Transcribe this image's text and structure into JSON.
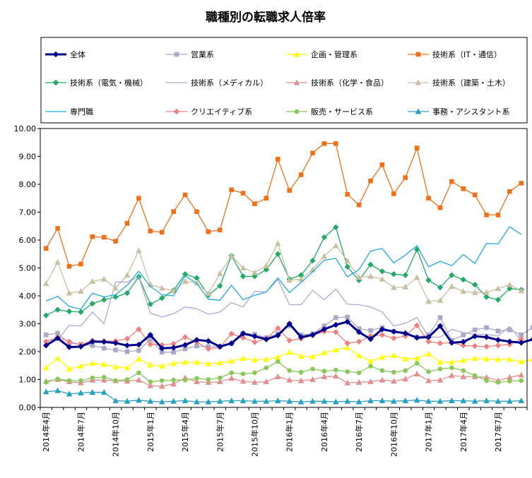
{
  "chart_data": {
    "type": "line",
    "title": "職種別の転職求人倍率",
    "xlabel": "",
    "ylabel": "",
    "ylim": [
      0,
      10
    ],
    "yticks": [
      "0.00",
      "1.00",
      "2.00",
      "3.00",
      "4.00",
      "5.00",
      "6.00",
      "7.00",
      "8.00",
      "9.00",
      "10.00"
    ],
    "xticks": [
      {
        "index": 0,
        "label": "2014年4月"
      },
      {
        "index": 3,
        "label": "2014年7月"
      },
      {
        "index": 6,
        "label": "2014年10月"
      },
      {
        "index": 9,
        "label": "2015年1月"
      },
      {
        "index": 12,
        "label": "2015年4月"
      },
      {
        "index": 15,
        "label": "2015年7月"
      },
      {
        "index": 18,
        "label": "2015年10月"
      },
      {
        "index": 21,
        "label": "2016年1月"
      },
      {
        "index": 24,
        "label": "2016年4月"
      },
      {
        "index": 27,
        "label": "2016年7月"
      },
      {
        "index": 30,
        "label": "2016年10月"
      },
      {
        "index": 33,
        "label": "2017年1月"
      },
      {
        "index": 36,
        "label": "2017年4月"
      },
      {
        "index": 39,
        "label": "2017年7月"
      }
    ],
    "grid": false,
    "legend_position": "top",
    "series": [
      {
        "name": "全体",
        "color": "#00008b",
        "marker": "diamond",
        "bold": true,
        "values": [
          2.22,
          2.48,
          2.16,
          2.18,
          2.36,
          2.35,
          2.31,
          2.22,
          2.25,
          2.6,
          2.12,
          2.14,
          2.24,
          2.42,
          2.38,
          2.18,
          2.3,
          2.65,
          2.55,
          2.44,
          2.58,
          3.0,
          2.52,
          2.6,
          2.8,
          2.96,
          3.07,
          2.7,
          2.45,
          2.8,
          2.72,
          2.66,
          2.5,
          2.52,
          2.92,
          2.32,
          2.35,
          2.55,
          2.52,
          2.42,
          2.36,
          2.32,
          2.44,
          2.42
        ]
      },
      {
        "name": "営業系",
        "color": "#a9a9c8",
        "marker": "square",
        "values": [
          2.6,
          2.66,
          2.3,
          2.26,
          2.22,
          2.12,
          2.06,
          2.0,
          2.04,
          2.44,
          1.98,
          1.98,
          2.1,
          2.2,
          2.18,
          2.18,
          2.28,
          2.66,
          2.62,
          2.5,
          2.64,
          2.92,
          2.6,
          2.64,
          2.92,
          3.22,
          3.24,
          2.82,
          2.76,
          2.86,
          2.72,
          2.6,
          2.52,
          2.6,
          3.22,
          2.4,
          2.6,
          2.78,
          2.86,
          2.74,
          2.78,
          2.6,
          2.86,
          2.64
        ]
      },
      {
        "name": "企画・管理系",
        "color": "#ffff00",
        "marker": "triangle",
        "values": [
          1.42,
          1.76,
          1.38,
          1.48,
          1.58,
          1.54,
          1.45,
          1.42,
          1.74,
          1.52,
          1.48,
          1.58,
          1.62,
          1.62,
          1.56,
          1.6,
          1.66,
          1.76,
          1.7,
          1.72,
          1.8,
          1.98,
          1.84,
          1.82,
          1.96,
          2.06,
          2.14,
          1.86,
          1.66,
          1.8,
          1.86,
          1.74,
          1.76,
          1.92,
          1.62,
          1.62,
          1.68,
          1.76,
          1.74,
          1.72,
          1.72,
          1.64,
          1.72,
          1.74
        ]
      },
      {
        "name": "技術系（IT・通信）",
        "color": "#f07018",
        "marker": "square",
        "values": [
          5.7,
          6.42,
          5.06,
          5.14,
          6.12,
          6.1,
          5.96,
          6.6,
          7.5,
          6.32,
          6.28,
          7.02,
          7.62,
          7.02,
          6.3,
          6.36,
          7.8,
          7.68,
          7.3,
          7.5,
          8.9,
          7.78,
          8.34,
          9.12,
          9.46,
          9.46,
          7.64,
          7.26,
          8.12,
          8.7,
          7.66,
          8.24,
          9.3,
          7.5,
          7.16,
          8.1,
          7.84,
          7.62,
          6.9,
          6.9,
          7.74,
          8.04
        ]
      },
      {
        "name": "技術系（電気・機械）",
        "color": "#22aa66",
        "marker": "diamond",
        "values": [
          3.3,
          3.5,
          3.44,
          3.42,
          3.72,
          3.86,
          3.96,
          4.1,
          4.68,
          3.7,
          3.92,
          4.2,
          4.78,
          4.64,
          4.02,
          4.36,
          5.44,
          4.7,
          4.7,
          4.94,
          5.5,
          4.6,
          4.74,
          5.26,
          6.1,
          6.46,
          5.04,
          4.56,
          5.12,
          4.88,
          4.78,
          4.74,
          5.66,
          4.56,
          4.3,
          4.74,
          4.58,
          4.4,
          3.96,
          3.86,
          4.26,
          4.22
        ]
      },
      {
        "name": "技術系（メディカル）",
        "color": "#b0a8d8",
        "marker": "none",
        "values": [
          2.4,
          2.42,
          2.94,
          2.92,
          3.42,
          3.0,
          4.5,
          4.5,
          4.68,
          3.38,
          3.24,
          3.36,
          3.6,
          3.54,
          3.34,
          3.42,
          3.76,
          3.6,
          4.16,
          4.14,
          4.58,
          3.68,
          3.68,
          4.2,
          3.86,
          4.24,
          3.7,
          3.68,
          3.6,
          3.42,
          2.92,
          3.02,
          3.22,
          2.52,
          2.52,
          2.8,
          2.68,
          2.62,
          2.62,
          2.56,
          2.9,
          2.4
        ]
      },
      {
        "name": "技術系（化学・食品）",
        "color": "#e09090",
        "marker": "triangle",
        "values": [
          0.94,
          1.0,
          0.92,
          0.88,
          0.98,
          0.98,
          0.96,
          0.94,
          0.98,
          0.78,
          0.76,
          0.84,
          1.06,
          0.92,
          0.9,
          0.92,
          1.04,
          0.94,
          0.9,
          0.92,
          1.1,
          0.98,
          0.96,
          1.0,
          1.1,
          1.12,
          0.88,
          0.9,
          0.92,
          0.98,
          0.94,
          1.02,
          1.2,
          0.96,
          0.98,
          1.14,
          1.1,
          1.1,
          1.08,
          0.96,
          1.08,
          1.16
        ]
      },
      {
        "name": "技術系（建築・土木）",
        "color": "#c8c0a0",
        "marker": "triangle",
        "values": [
          4.44,
          5.2,
          4.1,
          4.16,
          4.52,
          4.6,
          4.28,
          4.74,
          5.62,
          4.4,
          4.28,
          4.18,
          4.52,
          4.46,
          4.08,
          4.8,
          5.44,
          5.0,
          4.84,
          5.08,
          5.88,
          4.56,
          4.6,
          4.94,
          5.42,
          5.8,
          5.26,
          4.66,
          4.7,
          4.6,
          4.3,
          4.32,
          4.66,
          3.8,
          3.84,
          4.34,
          4.16,
          4.12,
          4.12,
          4.26,
          4.4,
          4.18
        ]
      },
      {
        "name": "専門職",
        "color": "#22aadd",
        "marker": "none",
        "values": [
          3.82,
          3.98,
          3.62,
          3.52,
          4.1,
          3.96,
          4.04,
          4.38,
          4.88,
          4.34,
          4.04,
          4.0,
          4.72,
          4.44,
          3.88,
          3.84,
          4.38,
          3.86,
          4.02,
          4.14,
          4.64,
          4.12,
          4.48,
          4.86,
          5.28,
          5.34,
          4.68,
          4.94,
          5.6,
          5.7,
          5.18,
          5.46,
          5.8,
          5.04,
          5.24,
          5.08,
          5.48,
          5.16,
          5.88,
          5.86,
          6.48,
          6.2
        ]
      },
      {
        "name": "クリエイティブ系",
        "color": "#f08080",
        "marker": "diamond",
        "values": [
          2.36,
          2.52,
          2.36,
          2.24,
          2.4,
          2.38,
          2.38,
          2.46,
          2.8,
          2.26,
          2.24,
          2.28,
          2.52,
          2.34,
          2.1,
          2.16,
          2.64,
          2.5,
          2.34,
          2.46,
          2.84,
          2.4,
          2.46,
          2.58,
          2.72,
          2.7,
          2.3,
          2.36,
          2.56,
          2.6,
          2.48,
          2.56,
          2.94,
          2.36,
          2.3,
          2.32,
          2.22,
          2.2,
          2.18,
          2.22,
          2.26,
          2.44
        ]
      },
      {
        "name": "販売・サービス系",
        "color": "#88c858",
        "marker": "circle",
        "values": [
          0.9,
          1.02,
          0.96,
          0.96,
          1.06,
          1.08,
          0.96,
          1.0,
          1.24,
          0.92,
          0.96,
          0.98,
          0.98,
          1.04,
          1.0,
          1.06,
          1.24,
          1.2,
          1.24,
          1.42,
          1.64,
          1.32,
          1.26,
          1.38,
          1.3,
          1.34,
          1.28,
          1.24,
          1.48,
          1.32,
          1.26,
          1.32,
          1.58,
          1.28,
          1.38,
          1.42,
          1.32,
          1.14,
          0.96,
          0.9,
          0.94,
          0.96
        ]
      },
      {
        "name": "事務・アシスタント系",
        "color": "#2aa0c0",
        "marker": "triangle",
        "values": [
          0.56,
          0.6,
          0.48,
          0.52,
          0.54,
          0.54,
          0.24,
          0.22,
          0.26,
          0.22,
          0.2,
          0.22,
          0.24,
          0.2,
          0.2,
          0.22,
          0.24,
          0.24,
          0.22,
          0.22,
          0.24,
          0.22,
          0.2,
          0.22,
          0.22,
          0.2,
          0.22,
          0.2,
          0.24,
          0.24,
          0.22,
          0.24,
          0.26,
          0.22,
          0.22,
          0.24,
          0.24,
          0.22,
          0.24,
          0.22,
          0.22,
          0.24
        ]
      }
    ]
  }
}
